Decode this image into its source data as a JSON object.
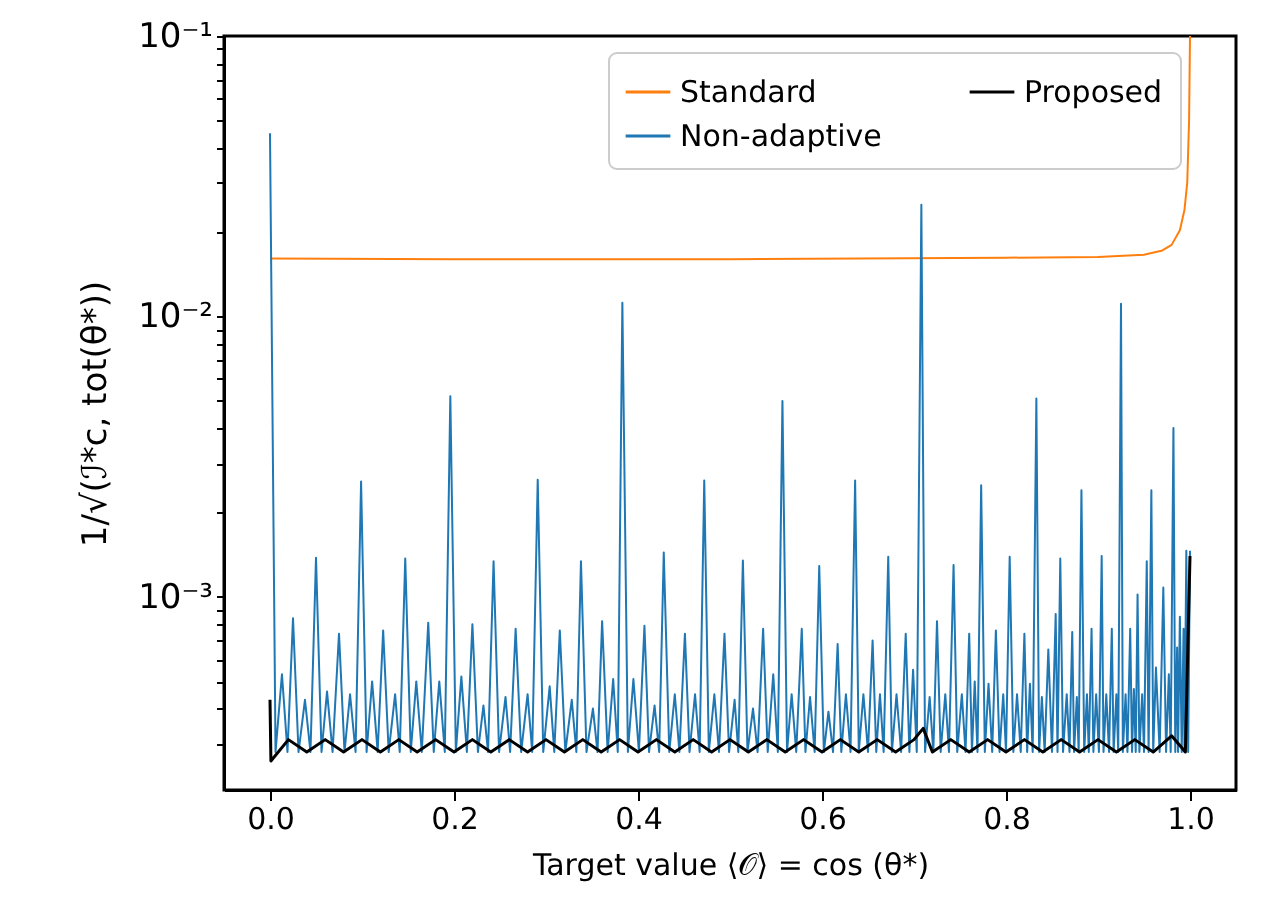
{
  "chart_data": {
    "type": "line",
    "xlabel": "Target value ⟨𝒪⟩ = cos (θ*)",
    "ylabel": "1/√(ℐ*c, tot(θ*))",
    "log": "y",
    "grid": false,
    "legend": "top right",
    "xlim": [
      -0.05,
      1.05
    ],
    "xticks": [
      {
        "value": 0,
        "label": "0.0"
      },
      {
        "value": 0.2,
        "label": "0.2"
      },
      {
        "value": 0.4,
        "label": "0.4"
      },
      {
        "value": 0.6,
        "label": "0.6"
      },
      {
        "value": 0.8,
        "label": "0.8"
      },
      {
        "value": 1,
        "label": "1.0"
      }
    ],
    "ylim": [
      0.000205,
      0.1
    ],
    "yticks": [
      {
        "value": 0.0003,
        "label": null
      },
      {
        "value": 0.0004,
        "label": null
      },
      {
        "value": 0.0005,
        "label": null
      },
      {
        "value": 0.0006,
        "label": null
      },
      {
        "value": 0.0007,
        "label": null
      },
      {
        "value": 0.0008,
        "label": null
      },
      {
        "value": 0.0009,
        "label": null
      },
      {
        "value": 0.001,
        "label": "10⁻³"
      },
      {
        "value": 0.002,
        "label": null
      },
      {
        "value": 0.003,
        "label": null
      },
      {
        "value": 0.004,
        "label": null
      },
      {
        "value": 0.005,
        "label": null
      },
      {
        "value": 0.006,
        "label": null
      },
      {
        "value": 0.007,
        "label": null
      },
      {
        "value": 0.008,
        "label": null
      },
      {
        "value": 0.009,
        "label": null
      },
      {
        "value": 0.01,
        "label": "10⁻²"
      },
      {
        "value": 0.02,
        "label": null
      },
      {
        "value": 0.03,
        "label": null
      },
      {
        "value": 0.04,
        "label": null
      },
      {
        "value": 0.05,
        "label": null
      },
      {
        "value": 0.06,
        "label": null
      },
      {
        "value": 0.07,
        "label": null
      },
      {
        "value": 0.08,
        "label": null
      },
      {
        "value": 0.09,
        "label": null
      },
      {
        "value": 0.1,
        "label": "10⁻¹"
      }
    ],
    "series": [
      {
        "name": "Standard",
        "color": "#ff7f0e",
        "x": [
          0,
          0.2,
          0.5,
          0.8,
          0.9,
          0.95,
          0.97,
          0.98,
          0.989,
          0.994,
          0.997,
          0.999,
          1.0
        ],
        "values": [
          0.0161,
          0.016,
          0.016,
          0.0162,
          0.0163,
          0.0166,
          0.0172,
          0.018,
          0.0203,
          0.024,
          0.03,
          0.05,
          0.1
        ]
      },
      {
        "name": "Non-adaptive",
        "color": "#1f77b4",
        "x": [
          0,
          0.006,
          0.013,
          0.019,
          0.025,
          0.031,
          0.038,
          0.044,
          0.05,
          0.056,
          0.062,
          0.068,
          0.075,
          0.081,
          0.087,
          0.093,
          0.099,
          0.105,
          0.111,
          0.117,
          0.123,
          0.129,
          0.136,
          0.141,
          0.147,
          0.153,
          0.159,
          0.165,
          0.172,
          0.178,
          0.184,
          0.19,
          0.196,
          0.202,
          0.208,
          0.214,
          0.22,
          0.226,
          0.232,
          0.237,
          0.243,
          0.249,
          0.256,
          0.261,
          0.267,
          0.273,
          0.28,
          0.285,
          0.291,
          0.297,
          0.304,
          0.309,
          0.315,
          0.321,
          0.328,
          0.333,
          0.338,
          0.344,
          0.351,
          0.356,
          0.361,
          0.367,
          0.373,
          0.378,
          0.383,
          0.389,
          0.395,
          0.401,
          0.407,
          0.412,
          0.418,
          0.423,
          0.428,
          0.434,
          0.44,
          0.445,
          0.451,
          0.456,
          0.462,
          0.467,
          0.472,
          0.477,
          0.483,
          0.488,
          0.494,
          0.499,
          0.505,
          0.509,
          0.514,
          0.519,
          0.525,
          0.53,
          0.536,
          0.541,
          0.547,
          0.552,
          0.557,
          0.562,
          0.567,
          0.572,
          0.578,
          0.582,
          0.587,
          0.592,
          0.597,
          0.602,
          0.607,
          0.612,
          0.617,
          0.621,
          0.626,
          0.631,
          0.636,
          0.64,
          0.645,
          0.65,
          0.655,
          0.659,
          0.663,
          0.667,
          0.672,
          0.676,
          0.681,
          0.686,
          0.691,
          0.695,
          0.699,
          0.703,
          0.708,
          0.712,
          0.717,
          0.721,
          0.725,
          0.729,
          0.734,
          0.738,
          0.743,
          0.747,
          0.752,
          0.756,
          0.76,
          0.763,
          0.766,
          0.769,
          0.773,
          0.777,
          0.781,
          0.785,
          0.789,
          0.793,
          0.797,
          0.8,
          0.804,
          0.808,
          0.812,
          0.816,
          0.82,
          0.823,
          0.826,
          0.829,
          0.833,
          0.836,
          0.839,
          0.842,
          0.846,
          0.85,
          0.854,
          0.856,
          0.859,
          0.862,
          0.866,
          0.869,
          0.872,
          0.874,
          0.877,
          0.879,
          0.882,
          0.885,
          0.888,
          0.89,
          0.893,
          0.895,
          0.898,
          0.901,
          0.904,
          0.906,
          0.909,
          0.912,
          0.915,
          0.917,
          0.92,
          0.922,
          0.925,
          0.927,
          0.93,
          0.932,
          0.935,
          0.937,
          0.939,
          0.941,
          0.943,
          0.945,
          0.948,
          0.95,
          0.953,
          0.955,
          0.958,
          0.96,
          0.963,
          0.967,
          0.971,
          0.974,
          0.977,
          0.979,
          0.982,
          0.984,
          0.986,
          0.987,
          0.989,
          0.991,
          0.993,
          0.994,
          0.996,
          0.998,
          1.0
        ],
        "values": [
          0.045,
          0.00028,
          0.00053,
          0.00028,
          0.00084,
          0.00028,
          0.00043,
          0.00028,
          0.00138,
          0.00028,
          0.00046,
          0.00028,
          0.00074,
          0.00028,
          0.00045,
          0.00028,
          0.00258,
          0.00028,
          0.0005,
          0.00028,
          0.00076,
          0.00028,
          0.00045,
          0.00028,
          0.00137,
          0.00028,
          0.0005,
          0.00028,
          0.00081,
          0.00028,
          0.0005,
          0.00028,
          0.0052,
          0.00028,
          0.00052,
          0.00028,
          0.0008,
          0.00028,
          0.00041,
          0.00028,
          0.00134,
          0.00028,
          0.00044,
          0.00028,
          0.00077,
          0.00028,
          0.00045,
          0.00028,
          0.00262,
          0.00028,
          0.00048,
          0.00028,
          0.00076,
          0.00028,
          0.00043,
          0.00028,
          0.00134,
          0.00028,
          0.0004,
          0.00028,
          0.00082,
          0.00028,
          0.00051,
          0.00028,
          0.0112,
          0.00028,
          0.00051,
          0.00028,
          0.00079,
          0.00028,
          0.00041,
          0.00028,
          0.00144,
          0.00028,
          0.00045,
          0.00028,
          0.00074,
          0.00028,
          0.00045,
          0.00028,
          0.0026,
          0.00028,
          0.00045,
          0.00028,
          0.00074,
          0.00028,
          0.00043,
          0.00028,
          0.00135,
          0.00028,
          0.0004,
          0.00028,
          0.00077,
          0.00028,
          0.00053,
          0.00028,
          0.005,
          0.00028,
          0.00045,
          0.00028,
          0.00077,
          0.00028,
          0.00044,
          0.00028,
          0.00129,
          0.00028,
          0.00039,
          0.00028,
          0.00068,
          0.00028,
          0.00045,
          0.00028,
          0.0026,
          0.00028,
          0.00045,
          0.00028,
          0.0007,
          0.00028,
          0.00045,
          0.00028,
          0.00139,
          0.00028,
          0.00045,
          0.00028,
          0.00074,
          0.00028,
          0.00055,
          0.00028,
          0.025,
          0.00028,
          0.00044,
          0.00028,
          0.00082,
          0.00028,
          0.00045,
          0.00028,
          0.0013,
          0.00028,
          0.00045,
          0.00028,
          0.00074,
          0.00028,
          0.0005,
          0.00028,
          0.0025,
          0.00028,
          0.00049,
          0.00028,
          0.00076,
          0.00028,
          0.00045,
          0.00028,
          0.00139,
          0.00028,
          0.00045,
          0.00028,
          0.00074,
          0.00028,
          0.00049,
          0.00028,
          0.0051,
          0.00028,
          0.00044,
          0.00028,
          0.00065,
          0.00028,
          0.00087,
          0.00028,
          0.00137,
          0.00028,
          0.00045,
          0.00028,
          0.00075,
          0.00028,
          0.00044,
          0.00028,
          0.0024,
          0.00028,
          0.00045,
          0.00028,
          0.00077,
          0.00028,
          0.00045,
          0.00028,
          0.0014,
          0.00028,
          0.00045,
          0.00028,
          0.00077,
          0.00028,
          0.00045,
          0.00028,
          0.0111,
          0.00028,
          0.00045,
          0.00028,
          0.00077,
          0.00028,
          0.00047,
          0.00028,
          0.00102,
          0.00028,
          0.00045,
          0.00028,
          0.00134,
          0.00028,
          0.0024,
          0.00028,
          0.00056,
          0.00028,
          0.00108,
          0.00028,
          0.00053,
          0.00028,
          0.004,
          0.00028,
          0.00066,
          0.00028,
          0.00085,
          0.00028,
          0.00077,
          0.00028,
          0.00146,
          0.00028,
          0.00146
        ]
      },
      {
        "name": "Proposed",
        "color": "#000000",
        "x": [
          0,
          0.001,
          0.02,
          0.04,
          0.06,
          0.08,
          0.1,
          0.12,
          0.14,
          0.16,
          0.18,
          0.2,
          0.22,
          0.24,
          0.26,
          0.28,
          0.3,
          0.32,
          0.34,
          0.36,
          0.38,
          0.4,
          0.42,
          0.44,
          0.46,
          0.48,
          0.5,
          0.52,
          0.54,
          0.56,
          0.58,
          0.6,
          0.62,
          0.64,
          0.66,
          0.68,
          0.7,
          0.71,
          0.72,
          0.74,
          0.76,
          0.78,
          0.8,
          0.82,
          0.84,
          0.86,
          0.88,
          0.9,
          0.92,
          0.94,
          0.96,
          0.98,
          0.995,
          1.0
        ],
        "values": [
          0.00043,
          0.00026,
          0.00031,
          0.00028,
          0.00031,
          0.00028,
          0.00031,
          0.00028,
          0.00031,
          0.00028,
          0.00031,
          0.00028,
          0.00031,
          0.00028,
          0.00031,
          0.00028,
          0.00031,
          0.00028,
          0.00031,
          0.00028,
          0.00031,
          0.00028,
          0.00031,
          0.00028,
          0.00031,
          0.00028,
          0.00031,
          0.00028,
          0.00031,
          0.00028,
          0.00031,
          0.00028,
          0.00031,
          0.00028,
          0.00031,
          0.00028,
          0.00031,
          0.00034,
          0.00028,
          0.00031,
          0.00028,
          0.00031,
          0.00028,
          0.00031,
          0.00028,
          0.00031,
          0.00028,
          0.00031,
          0.00028,
          0.00031,
          0.00028,
          0.00032,
          0.00028,
          0.0014
        ]
      }
    ]
  }
}
